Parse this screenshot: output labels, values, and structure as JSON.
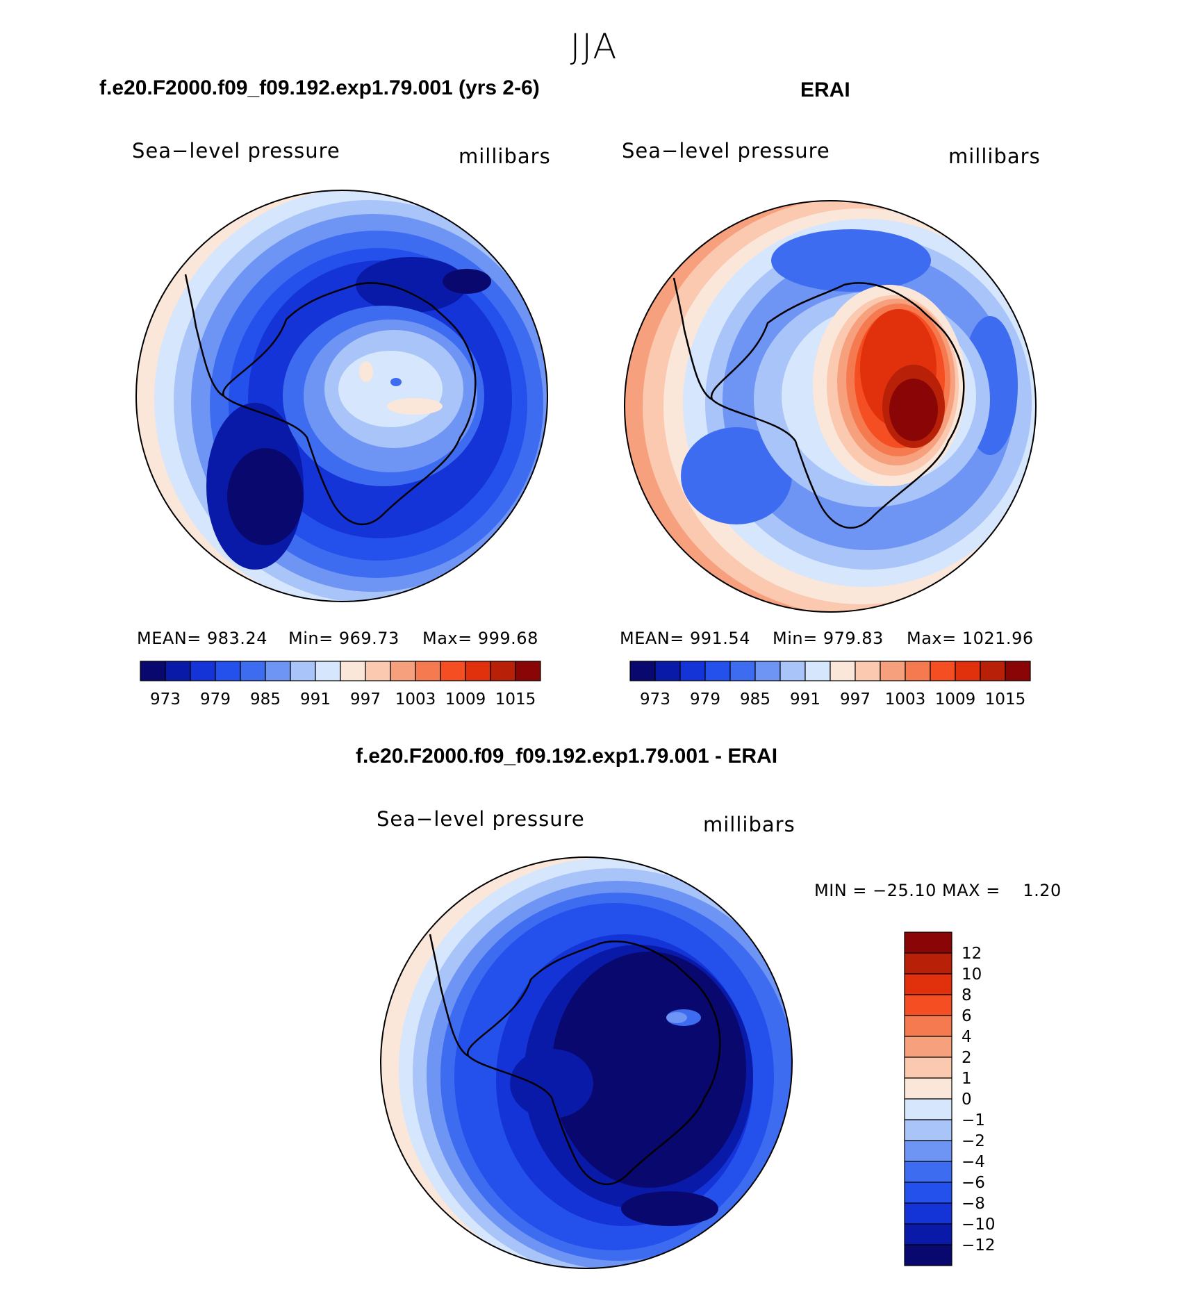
{
  "season": "JJA",
  "panels": [
    {
      "title": "f.e20.F2000.f09_f09.192.exp1.79.001 (yrs 2-6)",
      "variable": "Sea−level pressure",
      "units": "millibars",
      "mean_label": "MEAN= 983.24",
      "min_label": "Min= 969.73",
      "max_label": "Max= 999.68",
      "colorbar_ticks": [
        "973",
        "979",
        "985",
        "991",
        "997",
        "1003",
        "1009",
        "1015"
      ]
    },
    {
      "title": "ERAI",
      "variable": "Sea−level pressure",
      "units": "millibars",
      "mean_label": "MEAN= 991.54",
      "min_label": "Min= 979.83",
      "max_label": "Max= 1021.96",
      "colorbar_ticks": [
        "973",
        "979",
        "985",
        "991",
        "997",
        "1003",
        "1009",
        "1015"
      ]
    }
  ],
  "diff": {
    "title": "f.e20.F2000.f09_f09.192.exp1.79.001 - ERAI",
    "variable": "Sea−level pressure",
    "units": "millibars",
    "minmax_label": "MIN = −25.10 MAX =    1.20",
    "colorbar_ticks": [
      "12",
      "10",
      "8",
      "6",
      "4",
      "2",
      "1",
      "0",
      "−1",
      "−2",
      "−4",
      "−6",
      "−8",
      "−10",
      "−12"
    ]
  },
  "colors": {
    "abs_scale": [
      "#08086e",
      "#0a1aa8",
      "#1434d8",
      "#2450ec",
      "#3e6cf0",
      "#6e94f4",
      "#a8c4f8",
      "#d6e6fc",
      "#fbe6da",
      "#fbc8b0",
      "#f7a07e",
      "#f57a50",
      "#f44e22",
      "#e0300c",
      "#b82008",
      "#8a0606"
    ],
    "diff_scale": [
      "#8a0606",
      "#b82008",
      "#e0300c",
      "#f44e22",
      "#f57a50",
      "#f7a07e",
      "#fbc8b0",
      "#fbe6da",
      "#d6e6fc",
      "#a8c4f8",
      "#6e94f4",
      "#3e6cf0",
      "#2450ec",
      "#1434d8",
      "#0a1aa8",
      "#08086e"
    ]
  }
}
